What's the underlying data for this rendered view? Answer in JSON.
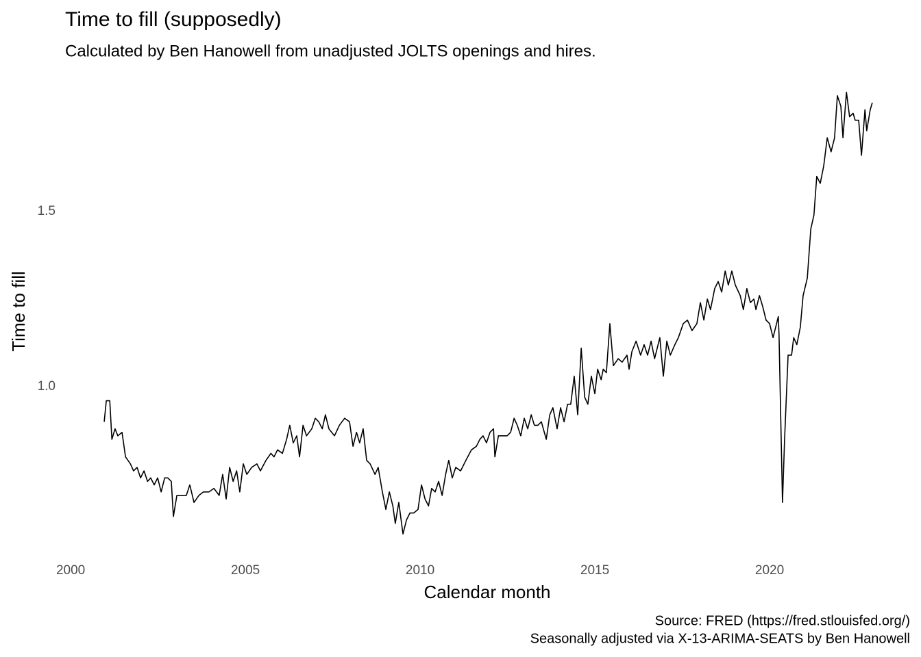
{
  "chart_data": {
    "type": "line",
    "title": "Time to fill (supposedly)",
    "subtitle": "Calculated by Ben Hanowell from unadjusted JOLTS openings and hires.",
    "x_label": "Calendar month",
    "y_label": "Time to fill",
    "caption": [
      "Source: FRED (https://fred.stlouisfed.org/)",
      "Seasonally adjusted via X-13-ARIMA-SEATS by Ben Hanowell"
    ],
    "color": "#000000",
    "grid": false,
    "xlim": [
      1999.9,
      2024.0
    ],
    "ylim": [
      0.52,
      1.9
    ],
    "xticks": [
      2000,
      2005,
      2010,
      2015,
      2020
    ],
    "yticks": [
      {
        "value": 1,
        "label": "1.0"
      },
      1.5
    ],
    "x": [
      2000.96,
      2001.02,
      2001.12,
      2001.18,
      2001.27,
      2001.35,
      2001.47,
      2001.57,
      2001.71,
      2001.8,
      2001.9,
      2002.0,
      2002.1,
      2002.2,
      2002.29,
      2002.39,
      2002.49,
      2002.59,
      2002.69,
      2002.78,
      2002.88,
      2002.94,
      2003.04,
      2003.18,
      2003.31,
      2003.41,
      2003.53,
      2003.67,
      2003.8,
      2003.96,
      2004.1,
      2004.25,
      2004.35,
      2004.45,
      2004.55,
      2004.65,
      2004.75,
      2004.84,
      2004.94,
      2005.04,
      2005.18,
      2005.33,
      2005.43,
      2005.59,
      2005.73,
      2005.82,
      2005.92,
      2006.06,
      2006.18,
      2006.27,
      2006.37,
      2006.47,
      2006.55,
      2006.65,
      2006.75,
      2006.9,
      2007.0,
      2007.1,
      2007.2,
      2007.29,
      2007.39,
      2007.55,
      2007.69,
      2007.84,
      2007.98,
      2008.08,
      2008.18,
      2008.27,
      2008.37,
      2008.47,
      2008.57,
      2008.71,
      2008.8,
      2008.92,
      2009.02,
      2009.12,
      2009.22,
      2009.29,
      2009.39,
      2009.51,
      2009.61,
      2009.71,
      2009.82,
      2009.94,
      2010.04,
      2010.14,
      2010.24,
      2010.33,
      2010.43,
      2010.53,
      2010.63,
      2010.73,
      2010.82,
      2010.92,
      2011.02,
      2011.16,
      2011.31,
      2011.47,
      2011.61,
      2011.71,
      2011.8,
      2011.9,
      2012.0,
      2012.1,
      2012.14,
      2012.24,
      2012.35,
      2012.49,
      2012.59,
      2012.69,
      2012.78,
      2012.88,
      2012.98,
      2013.08,
      2013.18,
      2013.27,
      2013.37,
      2013.47,
      2013.61,
      2013.71,
      2013.8,
      2013.92,
      2014.02,
      2014.12,
      2014.22,
      2014.31,
      2014.41,
      2014.51,
      2014.61,
      2014.71,
      2014.8,
      2014.9,
      2015.0,
      2015.08,
      2015.18,
      2015.24,
      2015.33,
      2015.43,
      2015.53,
      2015.67,
      2015.78,
      2015.92,
      2015.98,
      2016.06,
      2016.18,
      2016.31,
      2016.41,
      2016.51,
      2016.61,
      2016.71,
      2016.86,
      2016.96,
      2017.06,
      2017.16,
      2017.29,
      2017.39,
      2017.53,
      2017.65,
      2017.78,
      2017.92,
      2018.02,
      2018.12,
      2018.22,
      2018.31,
      2018.43,
      2018.53,
      2018.63,
      2018.73,
      2018.82,
      2018.92,
      2019.02,
      2019.16,
      2019.25,
      2019.35,
      2019.45,
      2019.55,
      2019.61,
      2019.71,
      2019.8,
      2019.9,
      2020.0,
      2020.1,
      2020.2,
      2020.25,
      2020.27,
      2020.37,
      2020.43,
      2020.53,
      2020.63,
      2020.69,
      2020.78,
      2020.88,
      2020.96,
      2021.08,
      2021.18,
      2021.27,
      2021.35,
      2021.45,
      2021.55,
      2021.65,
      2021.76,
      2021.86,
      2021.94,
      2022.04,
      2022.1,
      2022.2,
      2022.29,
      2022.39,
      2022.45,
      2022.55,
      2022.63,
      2022.73,
      2022.78,
      2022.88,
      2022.94
    ],
    "values": [
      0.9,
      0.96,
      0.96,
      0.85,
      0.88,
      0.86,
      0.87,
      0.8,
      0.78,
      0.76,
      0.77,
      0.74,
      0.76,
      0.73,
      0.74,
      0.72,
      0.74,
      0.7,
      0.74,
      0.74,
      0.73,
      0.63,
      0.69,
      0.69,
      0.69,
      0.72,
      0.67,
      0.69,
      0.7,
      0.7,
      0.71,
      0.69,
      0.75,
      0.68,
      0.77,
      0.73,
      0.76,
      0.7,
      0.78,
      0.75,
      0.77,
      0.78,
      0.76,
      0.79,
      0.81,
      0.8,
      0.82,
      0.81,
      0.85,
      0.89,
      0.84,
      0.86,
      0.8,
      0.89,
      0.86,
      0.88,
      0.91,
      0.9,
      0.88,
      0.92,
      0.88,
      0.86,
      0.89,
      0.91,
      0.9,
      0.83,
      0.87,
      0.84,
      0.88,
      0.79,
      0.78,
      0.75,
      0.77,
      0.7,
      0.65,
      0.7,
      0.66,
      0.61,
      0.67,
      0.58,
      0.62,
      0.64,
      0.64,
      0.65,
      0.72,
      0.68,
      0.66,
      0.71,
      0.7,
      0.73,
      0.69,
      0.75,
      0.79,
      0.74,
      0.77,
      0.76,
      0.79,
      0.82,
      0.83,
      0.85,
      0.86,
      0.84,
      0.87,
      0.88,
      0.8,
      0.86,
      0.86,
      0.86,
      0.87,
      0.91,
      0.89,
      0.86,
      0.91,
      0.88,
      0.92,
      0.89,
      0.89,
      0.9,
      0.85,
      0.92,
      0.94,
      0.88,
      0.94,
      0.9,
      0.95,
      0.95,
      1.03,
      0.92,
      1.11,
      0.97,
      0.95,
      1.03,
      0.98,
      1.05,
      1.02,
      1.05,
      1.04,
      1.18,
      1.06,
      1.08,
      1.07,
      1.09,
      1.05,
      1.1,
      1.13,
      1.09,
      1.12,
      1.09,
      1.13,
      1.08,
      1.14,
      1.03,
      1.13,
      1.09,
      1.12,
      1.14,
      1.18,
      1.19,
      1.16,
      1.18,
      1.24,
      1.19,
      1.25,
      1.22,
      1.28,
      1.3,
      1.27,
      1.33,
      1.29,
      1.33,
      1.29,
      1.26,
      1.22,
      1.28,
      1.24,
      1.25,
      1.22,
      1.26,
      1.23,
      1.19,
      1.18,
      1.14,
      1.18,
      1.2,
      1.15,
      0.67,
      0.85,
      1.09,
      1.09,
      1.14,
      1.12,
      1.17,
      1.26,
      1.31,
      1.45,
      1.49,
      1.6,
      1.58,
      1.63,
      1.71,
      1.67,
      1.71,
      1.83,
      1.8,
      1.71,
      1.84,
      1.77,
      1.78,
      1.76,
      1.76,
      1.66,
      1.79,
      1.73,
      1.79,
      1.81
    ]
  }
}
